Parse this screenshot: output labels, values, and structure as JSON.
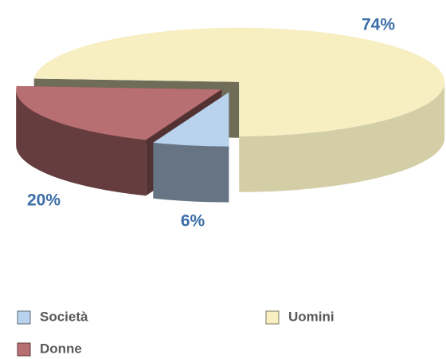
{
  "chart_data": {
    "type": "pie",
    "categories": [
      "Società",
      "Donne",
      "Uomini"
    ],
    "values": [
      6,
      20,
      74
    ],
    "value_labels": [
      "6%",
      "20%",
      "74%"
    ],
    "colors": [
      "#b9d3ee",
      "#b86f72",
      "#f7efc2"
    ]
  }
}
